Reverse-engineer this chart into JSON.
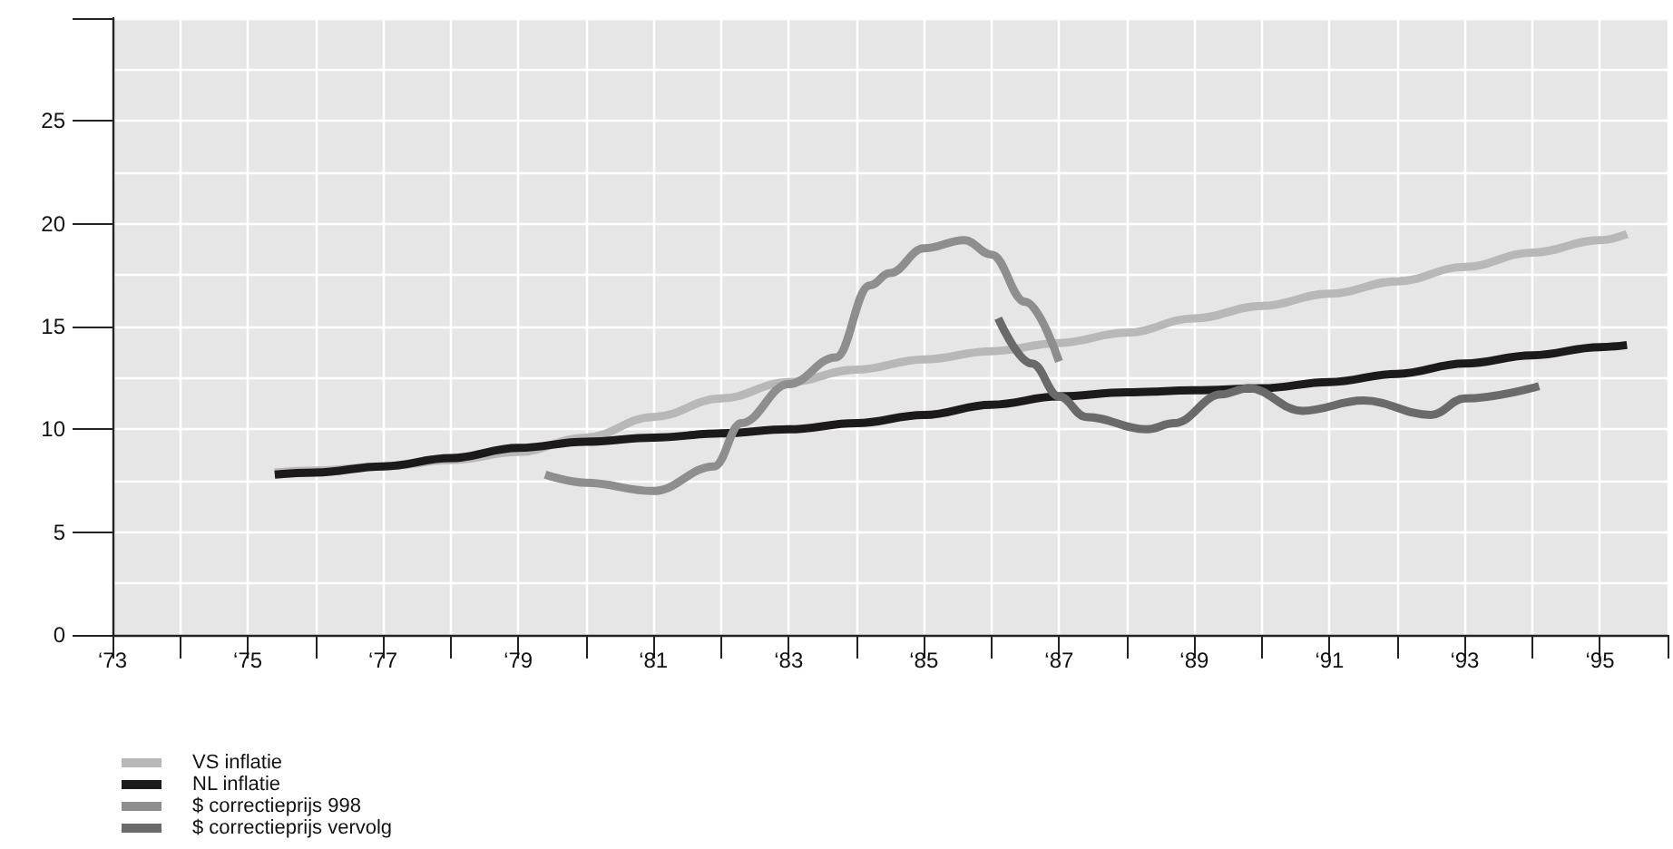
{
  "chart_data": {
    "type": "line",
    "xlim": [
      73,
      96
    ],
    "ylim": [
      0,
      30
    ],
    "xticks": [
      {
        "value": 73,
        "label": "‘73"
      },
      {
        "value": 74,
        "label": null
      },
      {
        "value": 75,
        "label": "‘75"
      },
      {
        "value": 76,
        "label": null
      },
      {
        "value": 77,
        "label": "‘77"
      },
      {
        "value": 78,
        "label": null
      },
      {
        "value": 79,
        "label": "‘79"
      },
      {
        "value": 80,
        "label": null
      },
      {
        "value": 81,
        "label": "‘81"
      },
      {
        "value": 82,
        "label": null
      },
      {
        "value": 83,
        "label": "‘83"
      },
      {
        "value": 84,
        "label": null
      },
      {
        "value": 85,
        "label": "‘85"
      },
      {
        "value": 86,
        "label": null
      },
      {
        "value": 87,
        "label": "‘87"
      },
      {
        "value": 88,
        "label": null
      },
      {
        "value": 89,
        "label": "‘89"
      },
      {
        "value": 90,
        "label": null
      },
      {
        "value": 91,
        "label": "‘91"
      },
      {
        "value": 92,
        "label": null
      },
      {
        "value": 93,
        "label": "‘93"
      },
      {
        "value": 94,
        "label": null
      },
      {
        "value": 95,
        "label": "‘95"
      },
      {
        "value": 96,
        "label": null
      }
    ],
    "yticks": [
      0,
      5,
      10,
      15,
      20,
      25,
      {
        "value": 30,
        "label": null
      }
    ],
    "grid": true,
    "legend": "bottom left",
    "marker": "none",
    "line_style": "solid",
    "series": [
      {
        "name": "VS inflatie",
        "color": "#b8b8b8",
        "x": [
          75.4,
          76,
          77,
          78,
          79,
          80,
          81,
          82,
          83,
          84,
          85,
          86,
          87,
          88,
          89,
          90,
          91,
          92,
          93,
          94,
          95,
          95.4
        ],
        "values": [
          7.9,
          8.0,
          8.2,
          8.5,
          8.9,
          9.6,
          10.6,
          11.5,
          12.3,
          12.9,
          13.4,
          13.8,
          14.2,
          14.7,
          15.4,
          16.0,
          16.6,
          17.2,
          17.9,
          18.6,
          19.2,
          19.5
        ]
      },
      {
        "name": "NL inflatie",
        "color": "#1c1a1a",
        "x": [
          75.4,
          76,
          77,
          78,
          79,
          80,
          81,
          82,
          83,
          84,
          85,
          86,
          87,
          88,
          89,
          90,
          91,
          92,
          93,
          94,
          95,
          95.4
        ],
        "values": [
          7.8,
          7.9,
          8.2,
          8.6,
          9.1,
          9.4,
          9.6,
          9.8,
          10.0,
          10.3,
          10.7,
          11.2,
          11.6,
          11.8,
          11.9,
          12.0,
          12.3,
          12.7,
          13.2,
          13.6,
          14.0,
          14.1
        ]
      },
      {
        "name": "$ correctieprijs 998",
        "color": "#8e8e8e",
        "x": [
          79.4,
          80,
          81,
          81.9,
          82.3,
          83,
          83.7,
          84.2,
          84.5,
          85,
          85.6,
          86,
          86.5,
          87
        ],
        "values": [
          7.8,
          7.4,
          7.0,
          8.2,
          10.3,
          12.2,
          13.5,
          17.0,
          17.6,
          18.8,
          19.2,
          18.5,
          16.2,
          13.3
        ]
      },
      {
        "name": "$ correctieprijs vervolg",
        "color": "#6a6a6a",
        "x": [
          86.1,
          86.6,
          87,
          87.4,
          88.3,
          88.7,
          89.4,
          89.8,
          90.6,
          91.5,
          92.5,
          93,
          94.1
        ],
        "values": [
          15.4,
          13.2,
          11.6,
          10.6,
          10.0,
          10.3,
          11.7,
          12.0,
          10.9,
          11.4,
          10.7,
          11.5,
          12.1
        ]
      }
    ]
  }
}
